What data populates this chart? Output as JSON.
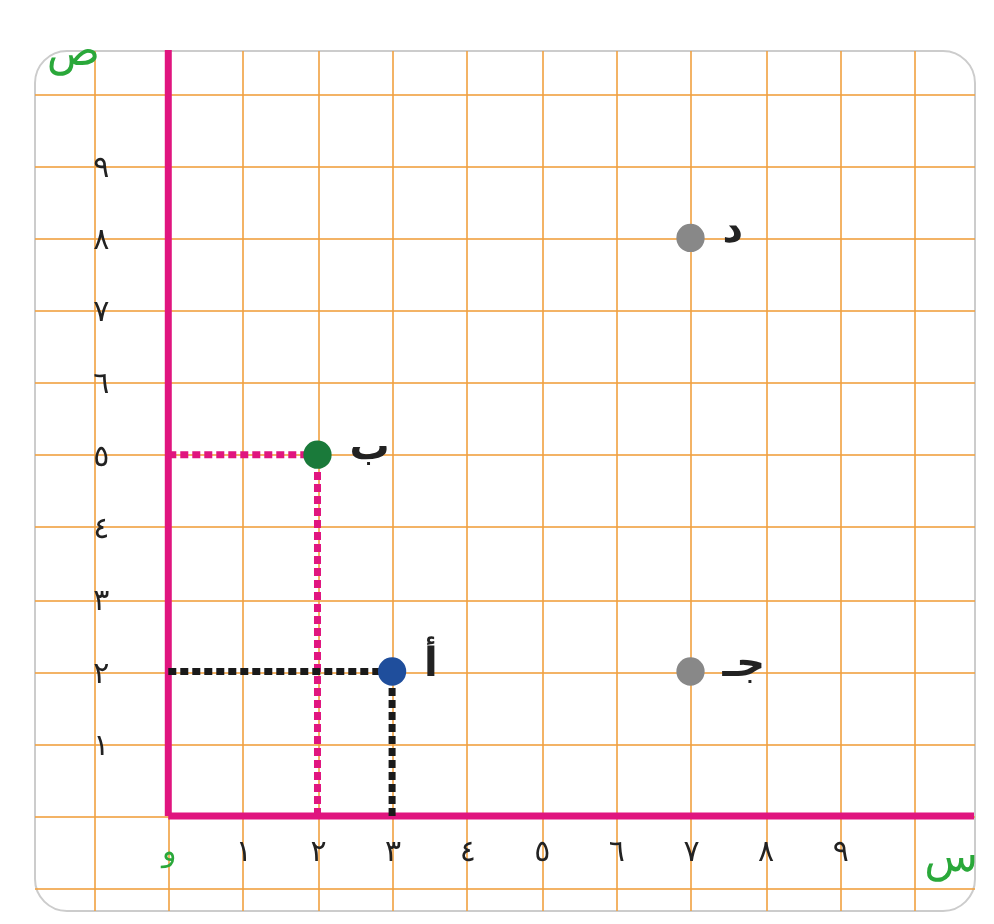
{
  "chart_data": {
    "type": "scatter",
    "xlabel": "س",
    "ylabel": "ص",
    "xlim": [
      -1.8,
      10.8
    ],
    "ylim": [
      -1.3,
      10.6
    ],
    "xticks": [
      {
        "value": -1,
        "label": null
      },
      {
        "value": 0,
        "label": "و"
      },
      {
        "value": 1,
        "label": "١"
      },
      {
        "value": 2,
        "label": "٢"
      },
      {
        "value": 3,
        "label": "٣"
      },
      {
        "value": 4,
        "label": "٤"
      },
      {
        "value": 5,
        "label": "٥"
      },
      {
        "value": 6,
        "label": "٦"
      },
      {
        "value": 7,
        "label": "٧"
      },
      {
        "value": 8,
        "label": "٨"
      },
      {
        "value": 9,
        "label": "٩"
      },
      {
        "value": 10,
        "label": null
      }
    ],
    "yticks": [
      {
        "value": -1,
        "label": null
      },
      {
        "value": 0,
        "label": null
      },
      {
        "value": 1,
        "label": "١"
      },
      {
        "value": 2,
        "label": "٢"
      },
      {
        "value": 3,
        "label": "٣"
      },
      {
        "value": 4,
        "label": "٤"
      },
      {
        "value": 5,
        "label": "٥"
      },
      {
        "value": 6,
        "label": "٦"
      },
      {
        "value": 7,
        "label": "٧"
      },
      {
        "value": 8,
        "label": "٨"
      },
      {
        "value": 9,
        "label": "٩"
      },
      {
        "value": 10,
        "label": null
      }
    ],
    "grid": true,
    "marker": "circle",
    "series": [
      {
        "type": "line",
        "line_style": "solid",
        "marker": "none",
        "color": "#e0157f",
        "x": [
          0,
          0
        ],
        "values": [
          0,
          10.6
        ]
      },
      {
        "type": "line",
        "line_style": "solid",
        "marker": "none",
        "color": "#e0157f",
        "x": [
          0,
          10.8
        ],
        "values": [
          0,
          0
        ]
      },
      {
        "type": "line",
        "line_style": "dashed",
        "marker": "none",
        "color": "#e0157f",
        "x": [
          0,
          2
        ],
        "values": [
          5,
          5
        ]
      },
      {
        "type": "line",
        "line_style": "dashed",
        "marker": "none",
        "color": "#e0157f",
        "x": [
          2,
          2
        ],
        "values": [
          0,
          5
        ]
      },
      {
        "type": "line",
        "line_style": "dashed",
        "marker": "none",
        "color": "#1a1a1a",
        "x": [
          0,
          3
        ],
        "values": [
          2,
          2
        ]
      },
      {
        "type": "line",
        "line_style": "dashed",
        "marker": "none",
        "color": "#1a1a1a",
        "x": [
          3,
          3
        ],
        "values": [
          0,
          2
        ]
      },
      {
        "type": "scatter",
        "x": [
          3,
          2,
          7,
          7
        ],
        "values": [
          2,
          5,
          2,
          8
        ],
        "colors": [
          "#1f4e9c",
          "#1a7a3a",
          "#888888",
          "#888888"
        ]
      }
    ],
    "annotations": [
      {
        "text": "أ",
        "x": 3,
        "y": 2
      },
      {
        "text": "ب",
        "x": 2,
        "y": 5
      },
      {
        "text": "جـ",
        "x": 7,
        "y": 2
      },
      {
        "text": "د",
        "x": 7,
        "y": 8
      }
    ]
  }
}
